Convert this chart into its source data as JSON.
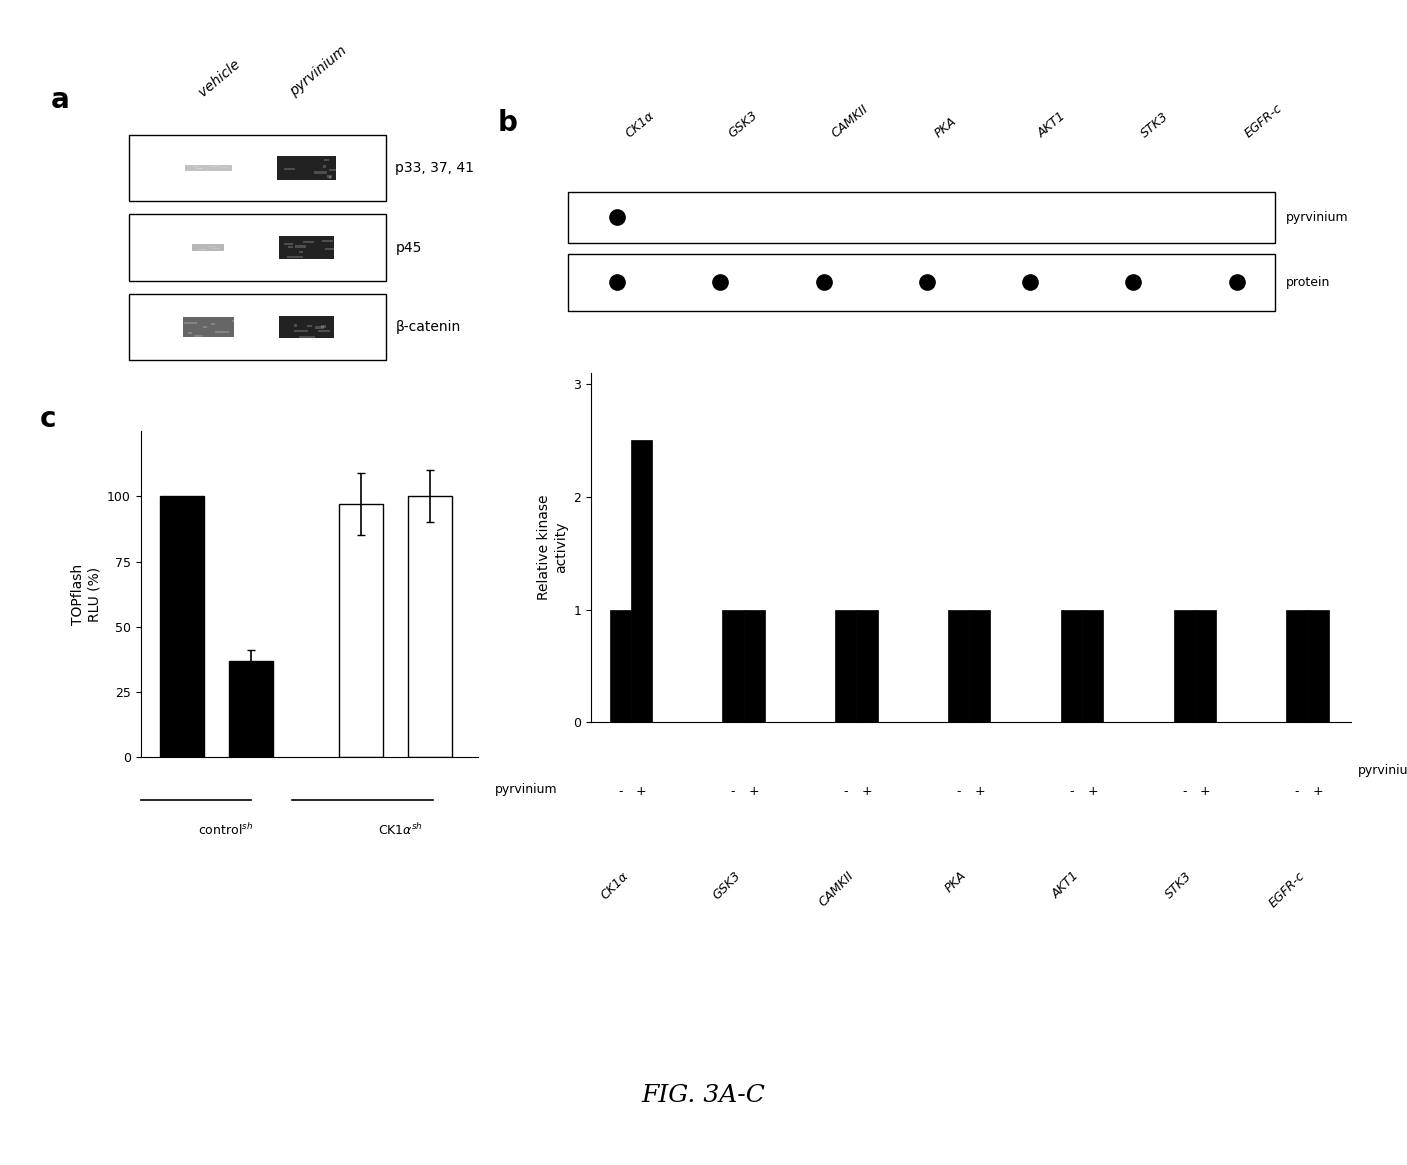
{
  "fig_title": "FIG. 3A-C",
  "panel_a": {
    "label": "a",
    "col_labels": [
      "vehicle",
      "pyrvinium"
    ],
    "row_labels": [
      "p33, 37, 41",
      "p45",
      "β-catenin"
    ]
  },
  "panel_b": {
    "label": "b",
    "kinases": [
      "CK1α",
      "GSK3",
      "CAMKII",
      "PKA",
      "AKT1",
      "STK3",
      "EGFR-c"
    ],
    "dot_row1_label": "pyrvinium",
    "dot_row2_label": "protein",
    "dot_row1": [
      true,
      false,
      false,
      false,
      false,
      false,
      false
    ],
    "dot_row2": [
      true,
      true,
      true,
      true,
      true,
      true,
      true
    ],
    "bar_values_minus": [
      1.0,
      1.0,
      1.0,
      1.0,
      1.0,
      1.0,
      1.0
    ],
    "bar_values_plus": [
      2.5,
      1.0,
      1.0,
      1.0,
      1.0,
      1.0,
      1.0
    ],
    "ylabel": "Relative kinase\nactivity",
    "yticks": [
      0,
      1,
      2,
      3
    ],
    "ylim": [
      0,
      3.1
    ]
  },
  "panel_c": {
    "label": "c",
    "bar_values": [
      100,
      37,
      97,
      100
    ],
    "bar_errors": [
      0,
      4,
      12,
      10
    ],
    "bar_colors": [
      "black",
      "black",
      "white",
      "white"
    ],
    "ylabel": "TOPflash\nRLU (%)",
    "yticks": [
      0,
      25,
      50,
      75,
      100
    ],
    "ylim": [
      0,
      125
    ]
  },
  "bg_color": "white",
  "text_color": "black"
}
